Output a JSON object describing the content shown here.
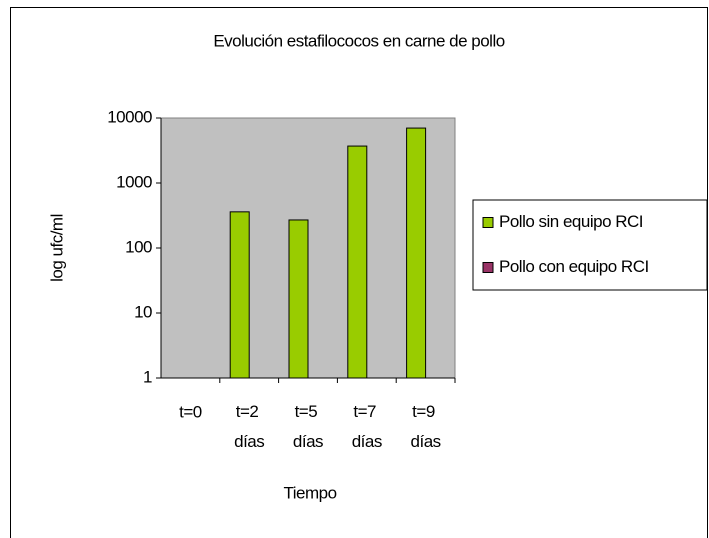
{
  "chart_data": {
    "type": "bar",
    "title": "Evolución estafilococos en carne de pollo",
    "x_label": "Tiempo",
    "y_label": "log ufc/ml",
    "categories": [
      "t=0",
      "t=2 días",
      "t=5 días",
      "t=7 días",
      "t=9 días"
    ],
    "series": [
      {
        "name": "Pollo sin equipo RCI",
        "color": "#99cc00",
        "values": [
          null,
          360,
          270,
          3700,
          7000
        ]
      },
      {
        "name": "Pollo con equipo RCI",
        "color": "#993366",
        "values": [
          null,
          null,
          null,
          null,
          null
        ]
      }
    ],
    "ylim": [
      1,
      10000
    ],
    "yticks": [
      1,
      10,
      100,
      1000,
      10000
    ],
    "log_scale": true,
    "grid": false,
    "legend": "right"
  }
}
